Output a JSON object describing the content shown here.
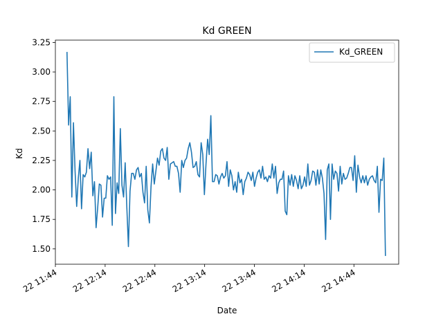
{
  "chart_data": {
    "type": "line",
    "title": "Kd GREEN",
    "xlabel": "Date",
    "ylabel": "Kd",
    "xlim": [
      "22 11:44",
      "22 15:11"
    ],
    "ylim": [
      1.37,
      3.27
    ],
    "grid": false,
    "legend_position": "top-right",
    "x_ticks": [
      "22 11:44",
      "22 12:14",
      "22 12:44",
      "22 13:14",
      "22 13:44",
      "22 14:14",
      "22 14:44"
    ],
    "y_ticks": [
      "1.50",
      "1.75",
      "2.00",
      "2.25",
      "2.50",
      "2.75",
      "3.00",
      "3.25"
    ],
    "series": [
      {
        "name": "Kd_GREEN",
        "color": "#1f77b4",
        "x_start": "22 11:51",
        "x_end": "22 15:03",
        "values": [
          3.17,
          2.55,
          2.79,
          1.94,
          2.57,
          2.16,
          1.86,
          2.1,
          2.25,
          1.84,
          2.13,
          2.11,
          2.15,
          2.35,
          2.18,
          2.32,
          1.95,
          2.07,
          1.68,
          1.85,
          2.05,
          2.04,
          1.77,
          1.93,
          1.93,
          2.12,
          2.09,
          2.11,
          1.7,
          2.79,
          1.8,
          2.06,
          1.97,
          2.52,
          2.04,
          1.94,
          2.23,
          1.86,
          1.52,
          1.99,
          2.14,
          2.14,
          2.09,
          2.17,
          2.19,
          2.11,
          2.14,
          1.98,
          1.89,
          2.2,
          1.83,
          1.72,
          2.03,
          2.22,
          2.05,
          2.16,
          2.27,
          2.21,
          2.33,
          2.35,
          2.27,
          2.25,
          2.36,
          2.09,
          2.22,
          2.23,
          2.24,
          2.2,
          2.2,
          2.14,
          1.98,
          2.25,
          2.19,
          2.25,
          2.27,
          2.35,
          2.4,
          2.32,
          2.19,
          2.2,
          2.24,
          2.13,
          2.11,
          2.4,
          2.3,
          1.96,
          2.22,
          2.43,
          2.3,
          2.63,
          2.07,
          2.07,
          2.13,
          2.12,
          2.05,
          2.11,
          2.14,
          2.1,
          2.12,
          2.24,
          2.03,
          2.17,
          2.12,
          2.0,
          2.07,
          1.98,
          2.15,
          2.06,
          2.09,
          1.96,
          2.07,
          2.1,
          2.15,
          2.13,
          2.08,
          2.15,
          2.03,
          2.1,
          2.15,
          2.17,
          2.1,
          2.2,
          2.09,
          2.11,
          2.07,
          2.12,
          2.1,
          2.22,
          2.1,
          2.2,
          1.97,
          2.06,
          2.09,
          2.09,
          2.16,
          1.82,
          1.79,
          2.12,
          2.04,
          2.13,
          2.03,
          2.12,
          2.08,
          2.01,
          2.12,
          2.01,
          2.04,
          2.11,
          2.03,
          2.22,
          2.04,
          2.08,
          2.16,
          2.15,
          2.04,
          2.17,
          2.05,
          2.17,
          2.1,
          1.97,
          1.58,
          2.17,
          2.22,
          1.75,
          2.22,
          2.09,
          2.16,
          2.14,
          1.99,
          2.2,
          2.05,
          2.14,
          2.09,
          2.1,
          2.14,
          2.19,
          2.19,
          2.08,
          2.29,
          1.98,
          2.21,
          2.11,
          2.06,
          2.12,
          2.06,
          2.12,
          2.04,
          2.09,
          2.11,
          2.12,
          2.08,
          2.06,
          2.2,
          1.81,
          2.09,
          2.08,
          2.27,
          1.44
        ]
      }
    ]
  }
}
